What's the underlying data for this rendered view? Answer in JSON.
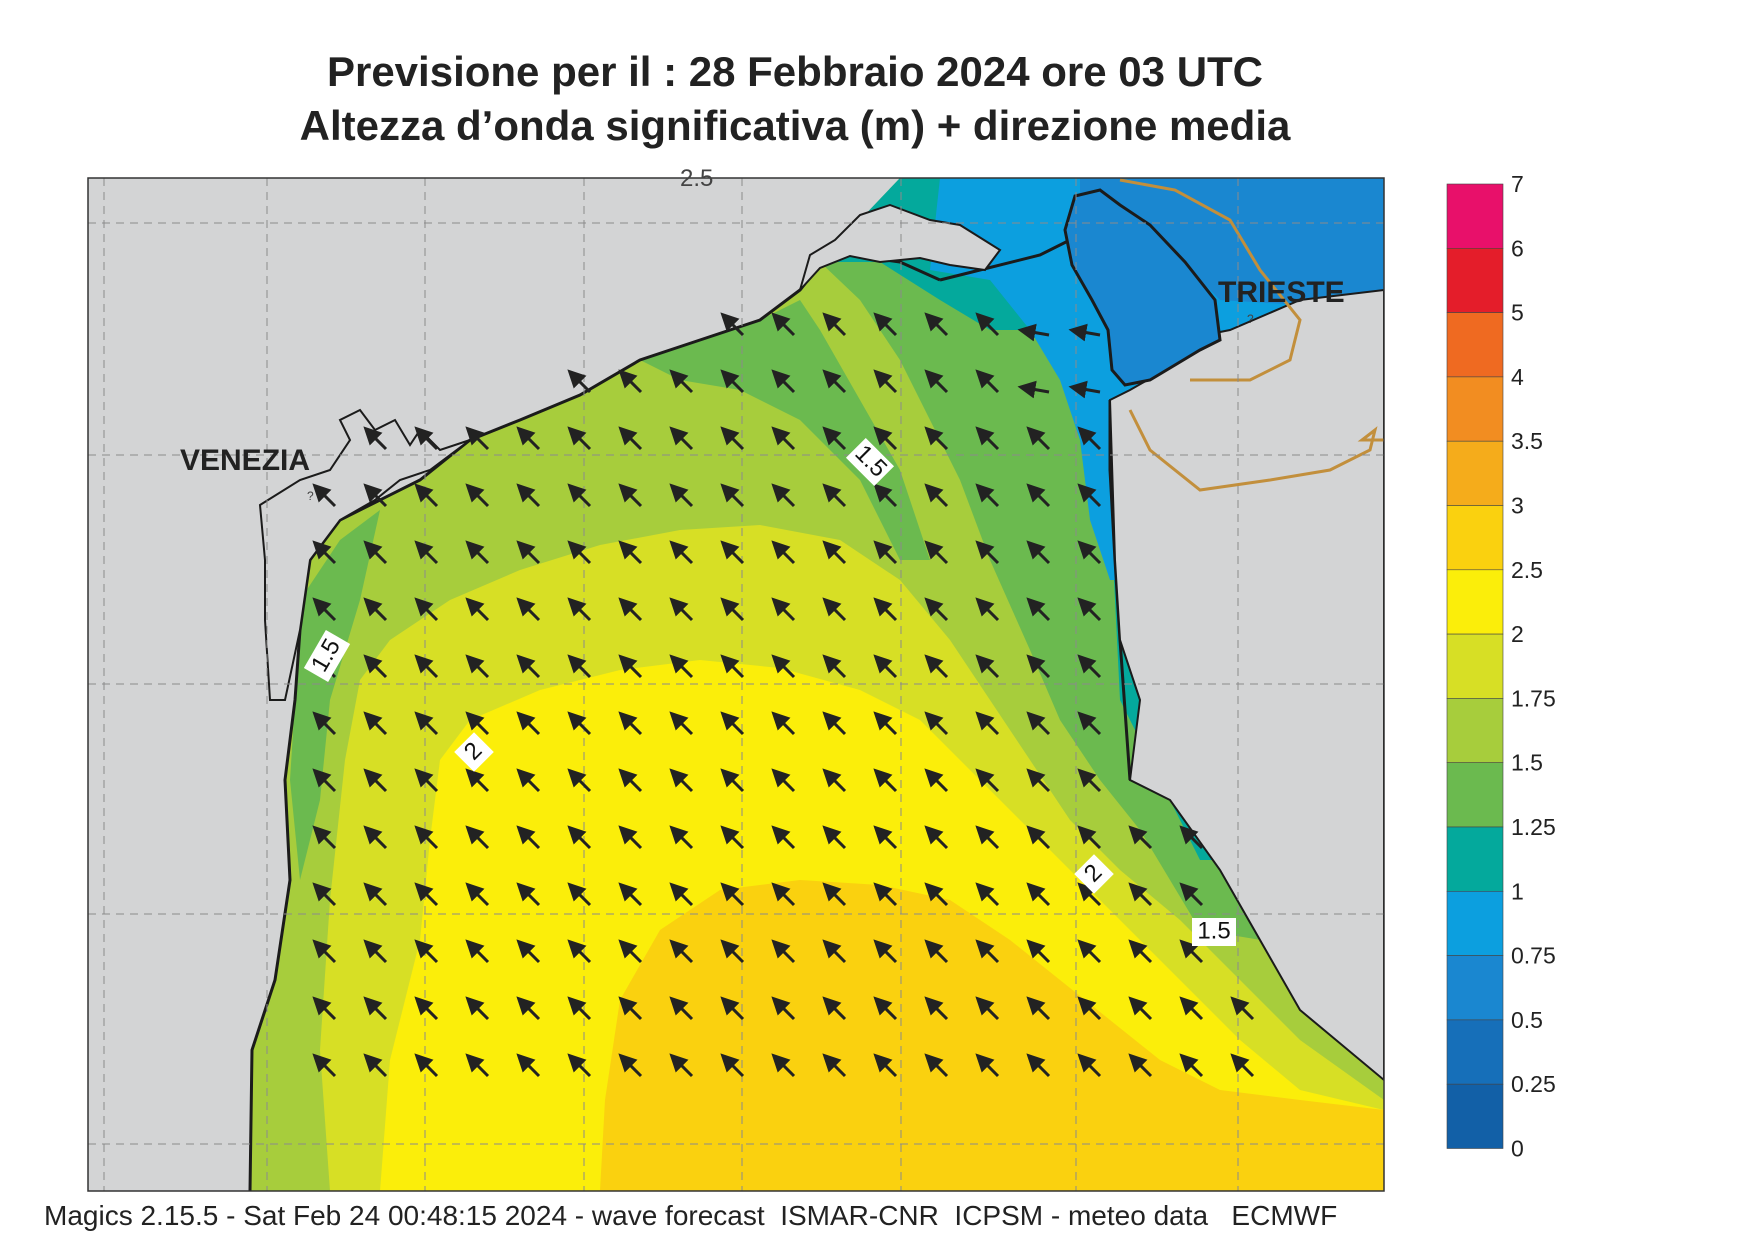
{
  "title_line1": "Previsione per il  :  28  Febbraio 2024   ore 03 UTC",
  "title_line2": "Altezza d’onda significativa (m) + direzione media",
  "footer": "Magics 2.15.5 - Sat Feb 24 00:48:15 2024 - wave forecast  ISMAR-CNR  ICPSM - meteo data   ECMWF",
  "map_labels": {
    "city_venezia": "VENEZIA",
    "city_trieste": "TRIESTE",
    "question_mark": "?",
    "top_edge_partial": "2.5"
  },
  "contour_labels": [
    "1.5",
    "1.5",
    "2",
    "2",
    "1.5"
  ],
  "colorbar": {
    "levels": [
      "7",
      "6",
      "5",
      "4",
      "3.5",
      "3",
      "2.5",
      "2",
      "1.75",
      "1.5",
      "1.25",
      "1",
      "0.75",
      "0.5",
      "0.25",
      "0"
    ],
    "colors": [
      "#e8106a",
      "#e41d2a",
      "#ef6a21",
      "#f28d21",
      "#f5ac1b",
      "#fad10f",
      "#fbee0a",
      "#d7df25",
      "#a7cd3c",
      "#6bba4f",
      "#04a99c",
      "#0c9fdf",
      "#1a87d0",
      "#166fb9",
      "#1260a7"
    ]
  },
  "colors": {
    "land": "#d3d4d5",
    "coast": "#1b1b1b",
    "border": "#c28f3c",
    "arrow": "#222222"
  },
  "wave_direction": "arrows pointing toward north-west across the basin"
}
